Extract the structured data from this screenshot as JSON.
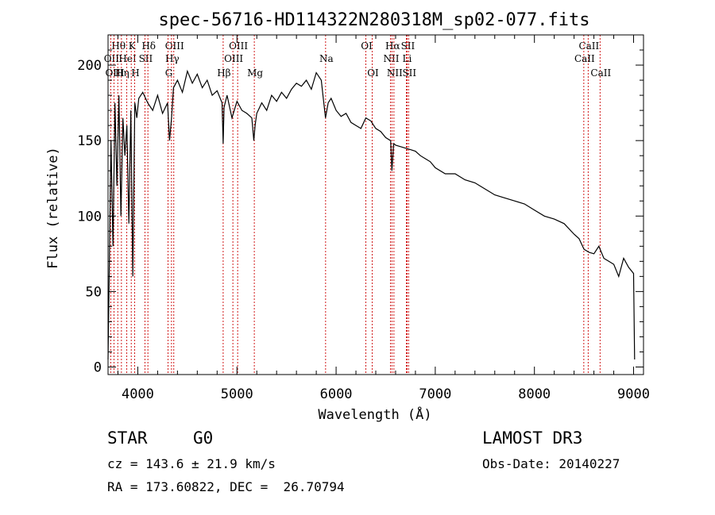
{
  "chart_data": {
    "type": "line",
    "title": "spec-56716-HD114322N280318M_sp02-077.fits",
    "xlabel": "Wavelength (Å)",
    "ylabel": "Flux (relative)",
    "xlim": [
      3700,
      9100
    ],
    "ylim": [
      -5,
      220
    ],
    "x_ticks": [
      4000,
      5000,
      6000,
      7000,
      8000,
      9000
    ],
    "y_ticks": [
      0,
      50,
      100,
      150,
      200
    ],
    "grid": false,
    "series": [
      {
        "x": [
          3700,
          3730,
          3750,
          3770,
          3790,
          3810,
          3830,
          3850,
          3870,
          3890,
          3910,
          3930,
          3950,
          3970,
          3990,
          4010,
          4050,
          4100,
          4150,
          4200,
          4250,
          4300,
          4320,
          4340,
          4360,
          4400,
          4450,
          4500,
          4550,
          4600,
          4650,
          4700,
          4750,
          4800,
          4850,
          4861,
          4870,
          4900,
          4950,
          5000,
          5050,
          5100,
          5150,
          5170,
          5183,
          5200,
          5250,
          5300,
          5350,
          5400,
          5450,
          5500,
          5550,
          5600,
          5650,
          5700,
          5750,
          5800,
          5850,
          5893,
          5920,
          5950,
          6000,
          6050,
          6100,
          6150,
          6200,
          6250,
          6300,
          6350,
          6400,
          6450,
          6500,
          6550,
          6563,
          6580,
          6600,
          6650,
          6700,
          6750,
          6800,
          6850,
          6900,
          6950,
          7000,
          7100,
          7200,
          7300,
          7400,
          7500,
          7600,
          7700,
          7800,
          7900,
          8000,
          8100,
          8200,
          8300,
          8400,
          8450,
          8500,
          8550,
          8600,
          8650,
          8700,
          8750,
          8800,
          8850,
          8900,
          8950,
          9000,
          9010
        ],
        "y": [
          5,
          150,
          80,
          175,
          120,
          180,
          100,
          165,
          140,
          160,
          95,
          170,
          60,
          175,
          165,
          178,
          182,
          175,
          170,
          180,
          168,
          175,
          150,
          165,
          185,
          190,
          182,
          196,
          188,
          194,
          185,
          190,
          180,
          183,
          175,
          148,
          172,
          180,
          165,
          176,
          170,
          168,
          165,
          150,
          160,
          168,
          175,
          170,
          180,
          176,
          182,
          178,
          184,
          188,
          186,
          190,
          184,
          195,
          190,
          165,
          175,
          178,
          170,
          166,
          168,
          162,
          160,
          158,
          165,
          163,
          158,
          156,
          152,
          150,
          130,
          148,
          147,
          146,
          145,
          144,
          143,
          140,
          138,
          136,
          132,
          128,
          128,
          124,
          122,
          118,
          114,
          112,
          110,
          108,
          104,
          100,
          98,
          95,
          88,
          85,
          78,
          76,
          75,
          80,
          72,
          70,
          68,
          60,
          72,
          66,
          62,
          5
        ]
      }
    ],
    "lines": [
      {
        "label": "Hθ",
        "x": 3798,
        "row": 1
      },
      {
        "label": "OII",
        "x": 3727,
        "row": 2
      },
      {
        "label": "OIII",
        "x": 3760,
        "row": 3
      },
      {
        "label": "Hη",
        "x": 3835,
        "row": 3
      },
      {
        "label": "HeI",
        "x": 3889,
        "row": 2
      },
      {
        "label": "K",
        "x": 3934,
        "row": 1
      },
      {
        "label": "H",
        "x": 3968,
        "row": 3
      },
      {
        "label": "SII",
        "x": 4072,
        "row": 2
      },
      {
        "label": "Hδ",
        "x": 4102,
        "row": 1
      },
      {
        "label": "OIII",
        "x": 4363,
        "row": 1
      },
      {
        "label": "Hγ",
        "x": 4340,
        "row": 2
      },
      {
        "label": "G",
        "x": 4305,
        "row": 3
      },
      {
        "label": "Hβ",
        "x": 4861,
        "row": 3
      },
      {
        "label": "OIII",
        "x": 5007,
        "row": 1
      },
      {
        "label": "OIII",
        "x": 4959,
        "row": 2
      },
      {
        "label": "Mg",
        "x": 5175,
        "row": 3
      },
      {
        "label": "Na",
        "x": 5894,
        "row": 2
      },
      {
        "label": "OI",
        "x": 6300,
        "row": 1
      },
      {
        "label": "OI",
        "x": 6364,
        "row": 3
      },
      {
        "label": "Hα",
        "x": 6563,
        "row": 1
      },
      {
        "label": "NII",
        "x": 6548,
        "row": 2
      },
      {
        "label": "NII",
        "x": 6583,
        "row": 3
      },
      {
        "label": "SII",
        "x": 6716,
        "row": 1
      },
      {
        "label": "Li",
        "x": 6708,
        "row": 2
      },
      {
        "label": "SII",
        "x": 6731,
        "row": 3
      },
      {
        "label": "CaII",
        "x": 8542,
        "row": 1
      },
      {
        "label": "CaII",
        "x": 8498,
        "row": 2
      },
      {
        "label": "CaII",
        "x": 8662,
        "row": 3
      }
    ]
  },
  "info": {
    "object_class": "STAR",
    "subclass": "G0",
    "survey": "LAMOST DR3",
    "cz": "cz = 143.6 ± 21.9 km/s",
    "obs_date": "Obs-Date: 20140227",
    "coords": "RA = 173.60822, DEC =  26.70794"
  }
}
